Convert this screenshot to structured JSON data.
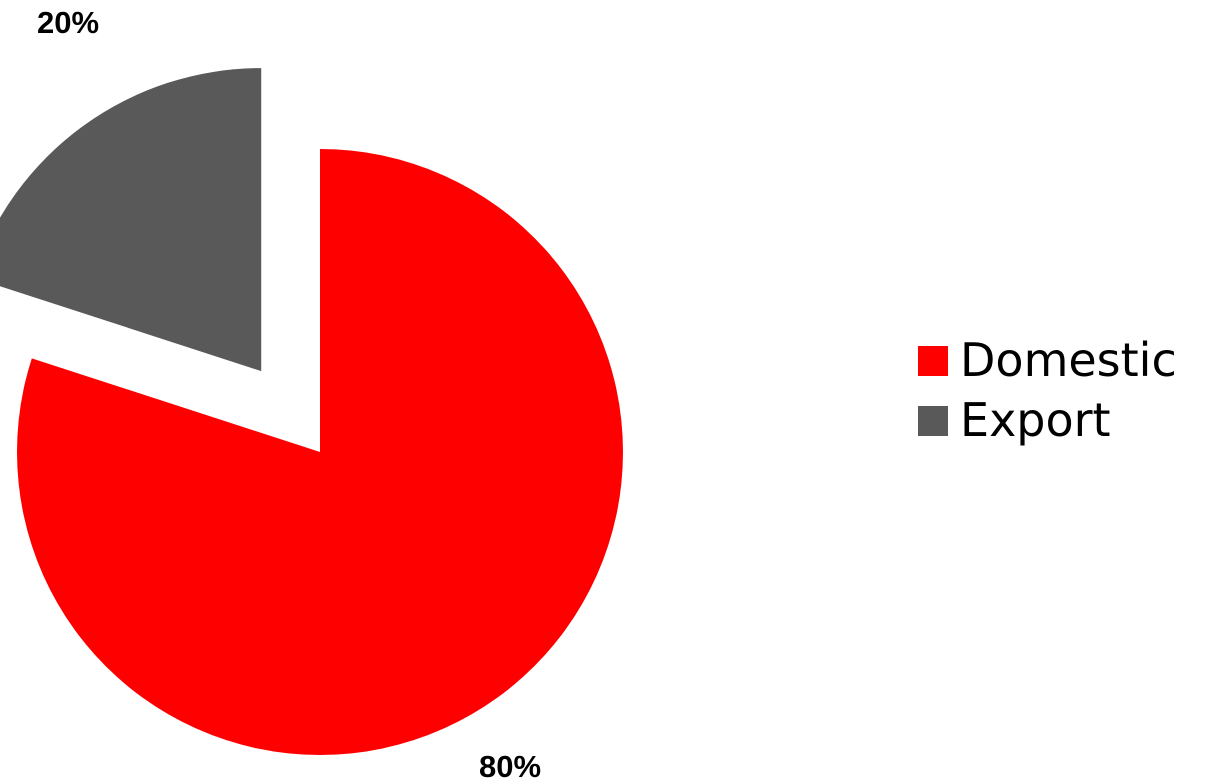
{
  "chart_data": {
    "type": "pie",
    "title": "",
    "categories": [
      "Domestic",
      "Export"
    ],
    "values": [
      80,
      20
    ],
    "value_labels": [
      "80%",
      "20%"
    ],
    "colors": [
      "#ff0000",
      "#595959"
    ],
    "exploded": [
      "Export"
    ],
    "start_angle_deg": 0,
    "direction": "clockwise",
    "legend_position": "right"
  },
  "legend": {
    "items": [
      {
        "label": "Domestic",
        "color": "#ff0000"
      },
      {
        "label": "Export",
        "color": "#595959"
      }
    ]
  }
}
